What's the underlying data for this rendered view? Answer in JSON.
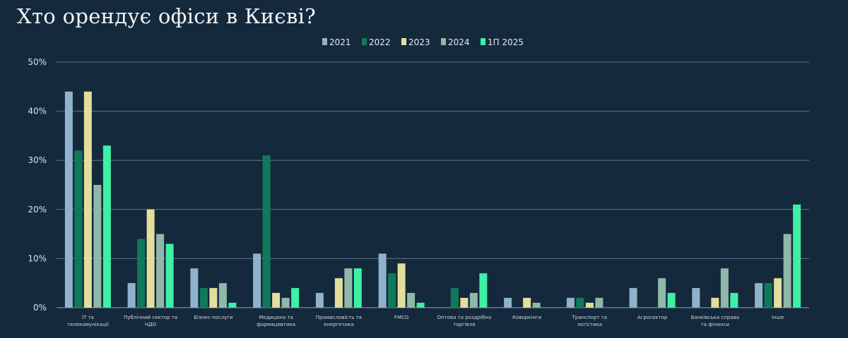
{
  "title": "Хто орендує офіси в Києві?",
  "chart_data": {
    "type": "bar",
    "title": "Хто орендує офіси в Києві?",
    "ylim": [
      0,
      50
    ],
    "yticks": [
      "0%",
      "10%",
      "20%",
      "30%",
      "40%",
      "50%"
    ],
    "grid": true,
    "legend_position": "top",
    "categories": [
      [
        "ІТ та",
        "телекомунікації"
      ],
      [
        "Публічний сектор та",
        "НДО"
      ],
      [
        "Бізнес-послуги"
      ],
      [
        "Медицина та",
        "фармацевтика"
      ],
      [
        "Промисловість та",
        "енергетика"
      ],
      [
        "FMCG"
      ],
      [
        "Оптова та роздрібна",
        "торгівля"
      ],
      [
        "Коворкінги"
      ],
      [
        "Транспорт та",
        "логістика"
      ],
      [
        "Агросектор"
      ],
      [
        "Банківська справа",
        "та фінанси"
      ],
      [
        "Інше"
      ]
    ],
    "series": [
      {
        "name": "2021",
        "color": "#8fb3cc",
        "values": [
          44,
          5,
          8,
          11,
          3,
          11,
          0,
          2,
          2,
          4,
          4,
          5
        ]
      },
      {
        "name": "2022",
        "color": "#0f7a5a",
        "values": [
          32,
          14,
          4,
          31,
          0,
          7,
          4,
          0,
          2,
          0,
          0,
          5
        ]
      },
      {
        "name": "2023",
        "color": "#e3de9c",
        "values": [
          44,
          20,
          4,
          3,
          6,
          9,
          2,
          2,
          1,
          0,
          2,
          6
        ]
      },
      {
        "name": "2024",
        "color": "#8fb8a8",
        "values": [
          25,
          15,
          5,
          2,
          8,
          3,
          3,
          1,
          2,
          6,
          8,
          15
        ]
      },
      {
        "name": "1П 2025",
        "color": "#3ef0a3",
        "values": [
          33,
          13,
          1,
          4,
          8,
          1,
          7,
          0,
          0,
          3,
          3,
          21
        ]
      }
    ]
  }
}
